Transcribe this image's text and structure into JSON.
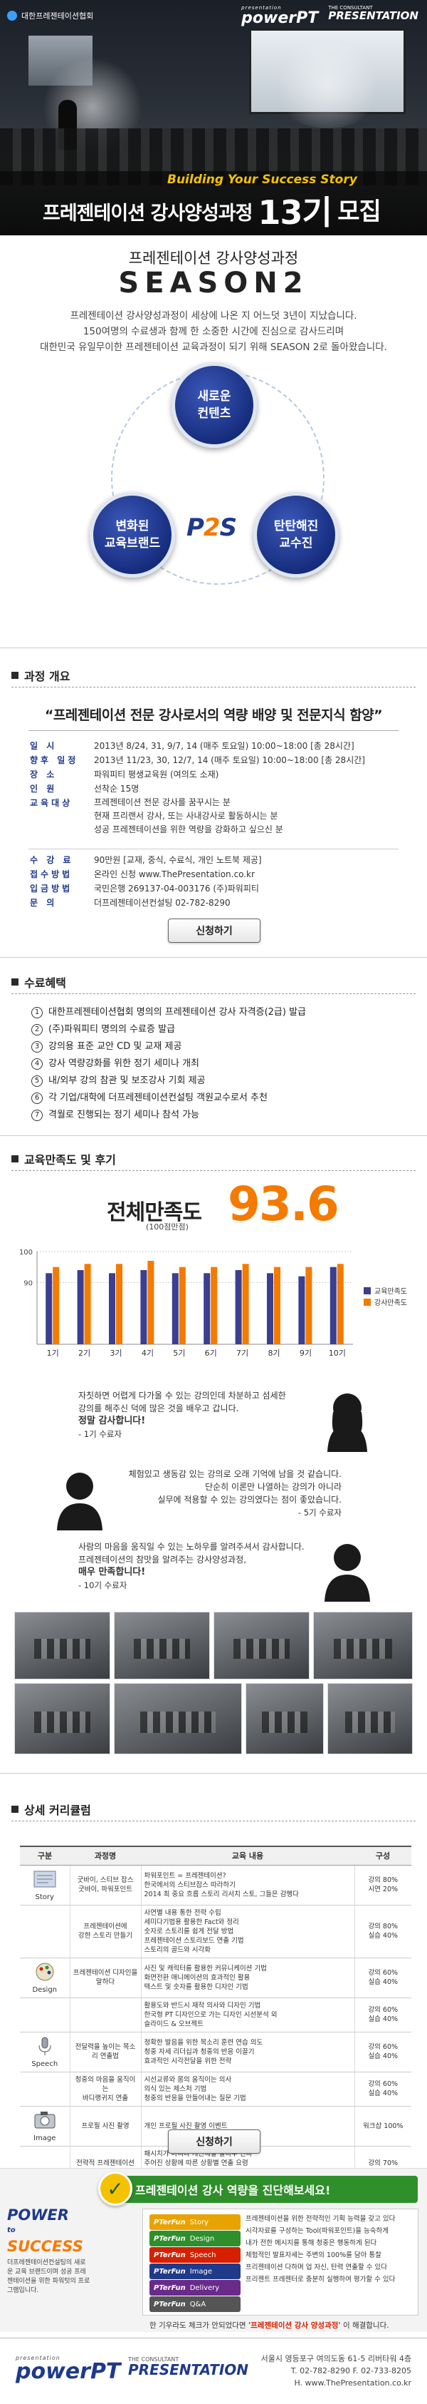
{
  "header": {
    "association": "대한프레젠테이션협회",
    "brand_tag": "presentation",
    "brand_name": "powerPT",
    "partner_top": "THE CONSULTANT",
    "partner_name": "PRESENTATION",
    "tagline": "Building Your Success Story",
    "title": "프레젠테이션 강사양성과정",
    "cohort": "13기",
    "recruit": "모집"
  },
  "season": {
    "subtitle": "프레젠테이션  강사양성과정",
    "title": "SEASON2",
    "desc_lines": [
      "프레젠테이션 강사양성과정이 세상에 나온 지 어느덧 3년이 지났습니다.",
      "150여명의 수료생과 함께 한 소중한 시간에 진심으로 감사드리며",
      "대한민국 유일무이한 프레젠테이션 교육과정이 되기 위해 SEASON 2로 돌아왔습니다."
    ]
  },
  "pillars": {
    "top": [
      "새로운",
      "컨텐츠"
    ],
    "left": [
      "변화된",
      "교육브랜드"
    ],
    "right": [
      "탄탄해진",
      "교수진"
    ],
    "center": {
      "p": "P",
      "two": "2",
      "s": "S"
    }
  },
  "overview": {
    "section_title": "과정 개요",
    "quote": "“프레젠테이션 전문 강사로서의 역량 배양 및 전문지식 함양”",
    "rows": [
      {
        "k": "일    시",
        "v": "2013년 8/24, 31, 9/7, 14 (매주 토요일) 10:00~18:00 [총 28시간]"
      },
      {
        "k": "향후 일정",
        "v": "2013년 11/23, 30, 12/7, 14 (매주 토요일) 10:00~18:00 [총 28시간]"
      },
      {
        "k": "장    소",
        "v": "파워피티 평생교육원 (여의도 소재)"
      },
      {
        "k": "인    원",
        "v": "선착순 15명"
      }
    ],
    "target_key": "교육대상",
    "target_lines": [
      "프레젠테이션 전문 강사를 꿈꾸시는 분",
      "현재 프리랜서 강사, 또는 사내강사로 활동하시는 분",
      "성공 프레젠테이션을 위한 역량을 강화하고 싶으신 분"
    ],
    "rows2": [
      {
        "k": "수 강 료",
        "v": "90만원 [교재, 중식, 수료식, 개인 노트북 제공]"
      },
      {
        "k": "접수방법",
        "v": "온라인 신청   www.ThePresentation.co.kr"
      },
      {
        "k": "입금방법",
        "v": "국민은행  269137-04-003176 (주)파워피티"
      },
      {
        "k": "문    의",
        "v": "더프레젠테이션컨설팅  02-782-8290"
      }
    ],
    "apply_label": "신청하기"
  },
  "benefits": {
    "section_title": "수료혜택",
    "items": [
      "대한프레젠테이션협회 명의의 프레젠테이션 강사 자격증(2급) 발급",
      "(주)파워피티 명의의 수료증 발급",
      "강의용 표준 교안 CD 및 교재 제공",
      "강사 역량강화를 위한 정기 세미나 개최",
      "내/외부 강의 참관 및 보조강사 기회 제공",
      "각 기업/대학에 더프레젠테이션컨설팅 객원교수로서 추천",
      "격월로 진행되는 정기 세미나 참석 가능"
    ]
  },
  "satisfaction": {
    "section_title": "교육만족도 및 후기",
    "label": "전체만족도",
    "sub": "(100점만점)",
    "score": "93.6"
  },
  "chart_data": {
    "type": "bar",
    "title": "",
    "xlabel": "",
    "ylabel": "",
    "ylim": [
      70,
      100
    ],
    "yticks": [
      "100",
      "90"
    ],
    "categories": [
      "1기",
      "2기",
      "3기",
      "4기",
      "5기",
      "6기",
      "7기",
      "8기",
      "9기",
      "10기"
    ],
    "series": [
      {
        "name": "교육만족도",
        "color": "#3b3f8f",
        "values": [
          93,
          94,
          93,
          94,
          93,
          93,
          94,
          93,
          92,
          95
        ]
      },
      {
        "name": "강사만족도",
        "color": "#f47a00",
        "values": [
          95,
          96,
          96,
          97,
          95,
          95,
          96,
          95,
          95,
          96
        ]
      }
    ],
    "legend": "right"
  },
  "reviews": [
    {
      "lines": [
        "자칫하면 어렵게 다가올 수 있는 강의인데 차분하고 섬세한",
        "강의를 해주신 덕에 많은 것을 배우고 갑니다."
      ],
      "strong": "정말 감사합니다!",
      "who": "- 1기 수료자"
    },
    {
      "lines": [
        "체험있고 생동감 있는 강의로 오래 기억에 남을 것 같습니다.",
        "단순히 이론만 나열하는 강의가 아니라",
        "실무에 적용할 수 있는 강의였다는 점이 좋았습니다."
      ],
      "strong": "",
      "who": "- 5기 수료자"
    },
    {
      "lines": [
        "사람의 마음을 움직일 수 있는 노하우를 알려주셔서 감사합니다.",
        "프레젠테이션의 참맛을 알려주는 강사양성과정,"
      ],
      "strong": "매우 만족합니다!",
      "who": "- 10기 수료자"
    }
  ],
  "curriculum": {
    "section_title": "상세 커리큘럼",
    "headers": [
      "구분",
      "과정명",
      "교육 내용",
      "구성"
    ],
    "rows": [
      {
        "cat": "Story",
        "name": "굿바이, 스티브 잡스\n굿바이, 파워포인트",
        "content": "파워포인트 = 프레젠테이션?\n한국에서의 스티브잡스 따라하기\n2014 최 중요 흐름 스토리 리서치 스토, 그들은 감행다",
        "comp": "강의 80%\n시연 20%"
      },
      {
        "cat": "",
        "name": "프레젠테이션에\n강한 스토리 만들기",
        "content": "사연별 내용 통한 전략 수립\n세미다기법용 활용한 Fact와 정리\n숫자로 스토리를 쉽게 전달 방법\n프레젠테이션 스토리보드 연출 기법\n스토리의 골드와 시각화",
        "comp": "강의 80%\n실습 40%"
      },
      {
        "cat": "Design",
        "name": "프레젠테이션 디자인을 말하다",
        "content": "사진 및 캐릭터를 활용한 커뮤니케이션 기법\n화면전환 애니메이션의 효과적인 활용\n텍스트 및 숫자를 활용한 디자인 기법",
        "comp": "강의 60%\n실습 40%"
      },
      {
        "cat": "",
        "name": "",
        "content": "활용도와 반드시 재작 의사와 디자인 기법\n한국형 PT 디자인으로 가는 디자인 시선분석 외\n슬라이드 & 오브젝트",
        "comp": "강의 60%\n실습 40%"
      },
      {
        "cat": "Speech",
        "name": "전달력을 높이는 목소리 연출법",
        "content": "정확한 발음을 위한 목소리 훈련 연습 의도\n청중 자세 리더십과 청중의 반응 이끌기\n효과적인 시각전달을 위한 전략",
        "comp": "강의 60%\n실습 40%"
      },
      {
        "cat": "",
        "name": "청중의 마음을 움직이는\n바디랭귀지 연출",
        "content": "시선교류와 몸의 움직이는 의사\n의식 있는 제스처 기법\n청중의 반응을 만들어내는 질문 기법",
        "comp": "강의 60%\n실습 40%"
      },
      {
        "cat": "Image",
        "name": "프로필 사진 촬영",
        "content": "개인 프로필 사진 촬영 이벤트",
        "comp": "워크샵 100%"
      },
      {
        "cat": "",
        "name": "전략적 프레젠테이션\n이미지 연출법",
        "content": "패시치가 아니라 캐산해할 할마부 판다\n주어진 상황에 따른 상황별 연출 요령\n수트, 액세서리 선택에서 전략적 슈어 한 유의\n신체의 가치성의 표현, 캐쥬얼 피부",
        "comp": "강의 70%\n실습 30%"
      }
    ],
    "apply_label": "신청하기"
  },
  "diagnosis": {
    "brand_a": "POWER",
    "brand_b": "to",
    "brand_c": "SUCCESS",
    "brand_desc": "더프레젠테이션컨설팅의 새로운 교육 브랜드이며 성공 프레젠테이션을 위한 파워텃의 프로그램입니다.",
    "banner": "프레젠테이션 강사 역량을 진단해보세요!",
    "items": [
      {
        "pt": "PTerFun",
        "label": "Story",
        "color": "#e8a300"
      },
      {
        "pt": "PTerFun",
        "label": "Design",
        "color": "#2f8f2a"
      },
      {
        "pt": "PTerFun",
        "label": "Speech",
        "color": "#d62000"
      },
      {
        "pt": "PTerFun",
        "label": "Image",
        "color": "#1f3a8a"
      },
      {
        "pt": "PTerFun",
        "label": "Delivery",
        "color": "#6a2a8a"
      },
      {
        "pt": "PTerFun",
        "label": "Q&A",
        "color": "#555555"
      }
    ],
    "text_lines": [
      "프레젠테이션을 위한 전략적인 기획 능력을 갖고 있다",
      "시각자료를 구성하는 Tool(파워포인트)을 능숙하게",
      "내가 전한 메시지를 통해 청중은 행동하게 된다",
      "체험적인 발표자세는 주변의 100%를 담아 통찰",
      "프리젠테이션 다하며 업 자신, 탄력 연출할 수 있다",
      "프리젠트 프레젠터로 충분히 실행하여 평가할 수 있다"
    ],
    "note_prefix": "한 기우라도 체크가 안되었다면",
    "note_hl": "'프레젠테이션 강사 양성과정'",
    "note_suffix": "이 해결합니다."
  },
  "footer": {
    "brand_tag": "presentation",
    "brand_name": "powerPT",
    "partner_top": "THE CONSULTANT",
    "partner_name": "PRESENTATION",
    "address": "서울시 영등포구 여의도동 61-5 리버타워 4층",
    "phone": "T. 02-782-8290  F. 02-733-8205",
    "web": "H. www.ThePresentation.co.kr"
  }
}
